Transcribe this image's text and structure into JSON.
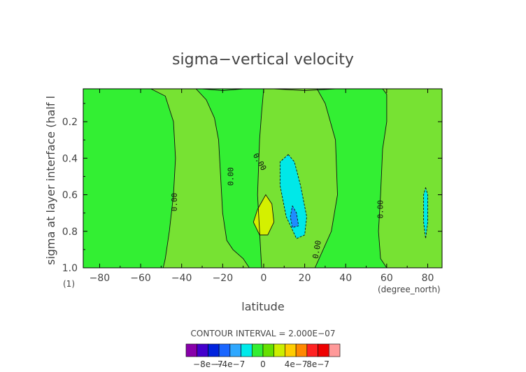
{
  "chart_data": {
    "type": "heatmap",
    "title": "sigma−vertical velocity",
    "xlabel": "latitude",
    "ylabel": "sigma at layer interface (half l",
    "x_unit": "(degree_north)",
    "y_unit": "(1)",
    "xlim": [
      -88,
      87
    ],
    "ylim": [
      1.0,
      0.02
    ],
    "x_ticks": [
      -80,
      -60,
      -40,
      -20,
      0,
      20,
      40,
      60,
      80
    ],
    "x_tick_labels": [
      "−80",
      "−60",
      "−40",
      "−20",
      "0",
      "20",
      "40",
      "60",
      "80"
    ],
    "y_ticks": [
      0.2,
      0.4,
      0.6,
      0.8,
      1.0
    ],
    "y_tick_labels": [
      "0.2",
      "0.4",
      "0.6",
      "0.8",
      "1.0"
    ],
    "contour_interval_text": "CONTOUR INTERVAL = 2.000E−07",
    "contour_labels": [
      {
        "text": "0.00",
        "lat": -43.5,
        "sigma": 0.64,
        "rotate": -90
      },
      {
        "text": "0.00",
        "lat": -16,
        "sigma": 0.5,
        "rotate": -90
      },
      {
        "text": "0.00",
        "lat": -2,
        "sigma": 0.42,
        "rotate": 60
      },
      {
        "text": "0.00",
        "lat": 57,
        "sigma": 0.68,
        "rotate": -90
      },
      {
        "text": "0.00",
        "lat": 26,
        "sigma": 0.9,
        "rotate": -80
      }
    ],
    "regions": [
      {
        "level": "0 to 2e-7",
        "color": "#77e233",
        "points": [
          [
            -88,
            0.02
          ],
          [
            -33,
            0.02
          ],
          [
            -28,
            0.08
          ],
          [
            -24,
            0.18
          ],
          [
            -22,
            0.3
          ],
          [
            -21,
            0.5
          ],
          [
            -20,
            0.7
          ],
          [
            -18,
            0.85
          ],
          [
            -15,
            0.9
          ],
          [
            -10,
            0.95
          ],
          [
            -7,
            1.0
          ],
          [
            -88,
            1.0
          ]
        ]
      },
      {
        "level": "0 to 2e-7",
        "color": "#77e233",
        "points": [
          [
            0,
            0.02
          ],
          [
            26,
            0.02
          ],
          [
            30,
            0.1
          ],
          [
            35,
            0.3
          ],
          [
            36,
            0.6
          ],
          [
            33,
            0.8
          ],
          [
            29,
            0.9
          ],
          [
            25,
            1.0
          ],
          [
            -1,
            1.0
          ],
          [
            -3,
            0.6
          ],
          [
            -2,
            0.3
          ],
          [
            -1,
            0.15
          ]
        ]
      },
      {
        "level": "0 to 2e-7",
        "color": "#77e233",
        "points": [
          [
            58,
            0.02
          ],
          [
            87,
            0.02
          ],
          [
            87,
            1.0
          ],
          [
            60,
            1.0
          ],
          [
            57,
            0.95
          ],
          [
            56,
            0.8
          ],
          [
            57,
            0.6
          ],
          [
            58,
            0.35
          ],
          [
            60,
            0.2
          ],
          [
            60,
            0.05
          ]
        ]
      },
      {
        "level": "0 to -2e-7",
        "color": "#33ef33",
        "points": [
          [
            -33,
            0.02
          ],
          [
            0,
            0.02
          ],
          [
            -1,
            0.15
          ],
          [
            -2,
            0.3
          ],
          [
            -3,
            0.6
          ],
          [
            -1,
            1.0
          ],
          [
            -7,
            1.0
          ],
          [
            -10,
            0.95
          ],
          [
            -15,
            0.9
          ],
          [
            -18,
            0.85
          ],
          [
            -20,
            0.7
          ],
          [
            -21,
            0.5
          ],
          [
            -22,
            0.3
          ],
          [
            -24,
            0.18
          ],
          [
            -28,
            0.08
          ]
        ]
      },
      {
        "level": "0 to -2e-7",
        "color": "#33ef33",
        "points": [
          [
            26,
            0.02
          ],
          [
            58,
            0.02
          ],
          [
            60,
            0.05
          ],
          [
            60,
            0.2
          ],
          [
            58,
            0.35
          ],
          [
            57,
            0.6
          ],
          [
            56,
            0.8
          ],
          [
            57,
            0.95
          ],
          [
            60,
            1.0
          ],
          [
            25,
            1.0
          ],
          [
            29,
            0.9
          ],
          [
            33,
            0.8
          ],
          [
            36,
            0.6
          ],
          [
            35,
            0.3
          ],
          [
            30,
            0.1
          ]
        ]
      },
      {
        "level": "0 to -2e-7",
        "color": "#33ef33",
        "points": [
          [
            -88,
            0.02
          ],
          [
            -55,
            0.02
          ],
          [
            -48,
            0.06
          ],
          [
            -44,
            0.2
          ],
          [
            -43,
            0.4
          ],
          [
            -44,
            0.6
          ],
          [
            -46,
            0.8
          ],
          [
            -48,
            0.95
          ],
          [
            -49,
            1.0
          ],
          [
            -88,
            1.0
          ]
        ]
      },
      {
        "level": "2e-7 to 4e-7",
        "color": "#d4f000",
        "points": [
          [
            -3,
            0.68
          ],
          [
            1,
            0.6
          ],
          [
            4,
            0.65
          ],
          [
            5,
            0.75
          ],
          [
            2,
            0.82
          ],
          [
            -2,
            0.82
          ],
          [
            -5,
            0.75
          ]
        ]
      },
      {
        "level": "-2e-7 to -4e-7",
        "color": "#00e8e8",
        "points": [
          [
            12,
            0.38
          ],
          [
            15,
            0.42
          ],
          [
            18,
            0.55
          ],
          [
            21,
            0.72
          ],
          [
            20,
            0.82
          ],
          [
            16,
            0.84
          ],
          [
            11,
            0.72
          ],
          [
            8,
            0.55
          ],
          [
            8,
            0.42
          ]
        ]
      },
      {
        "level": "-4e-7 to -6e-7",
        "color": "#1f8cff",
        "points": [
          [
            14,
            0.66
          ],
          [
            16,
            0.7
          ],
          [
            17,
            0.77
          ],
          [
            14,
            0.78
          ],
          [
            13,
            0.72
          ]
        ]
      },
      {
        "level": "-2e-7 to -4e-7",
        "color": "#00e8e8",
        "points": [
          [
            79,
            0.56
          ],
          [
            80,
            0.6
          ],
          [
            80,
            0.75
          ],
          [
            79,
            0.84
          ],
          [
            78,
            0.75
          ],
          [
            78,
            0.6
          ]
        ]
      }
    ],
    "solid_contours": [
      [
        [
          -55,
          0.02
        ],
        [
          -48,
          0.06
        ],
        [
          -44,
          0.2
        ],
        [
          -43,
          0.4
        ],
        [
          -44,
          0.6
        ],
        [
          -46,
          0.8
        ],
        [
          -48,
          0.95
        ],
        [
          -49,
          1.0
        ]
      ],
      [
        [
          -33,
          0.02
        ],
        [
          -28,
          0.08
        ],
        [
          -24,
          0.18
        ],
        [
          -22,
          0.3
        ],
        [
          -21,
          0.5
        ],
        [
          -20,
          0.7
        ],
        [
          -18,
          0.85
        ],
        [
          -15,
          0.9
        ],
        [
          -10,
          0.95
        ],
        [
          -7,
          1.0
        ]
      ],
      [
        [
          0,
          0.02
        ],
        [
          -1,
          0.15
        ],
        [
          -2,
          0.3
        ],
        [
          -3,
          0.6
        ],
        [
          -1,
          1.0
        ]
      ],
      [
        [
          26,
          0.02
        ],
        [
          30,
          0.1
        ],
        [
          35,
          0.3
        ],
        [
          36,
          0.6
        ],
        [
          33,
          0.8
        ],
        [
          29,
          0.9
        ],
        [
          25,
          1.0
        ]
      ],
      [
        [
          58,
          0.02
        ],
        [
          60,
          0.05
        ],
        [
          60,
          0.2
        ],
        [
          58,
          0.35
        ],
        [
          57,
          0.6
        ],
        [
          56,
          0.8
        ],
        [
          57,
          0.95
        ],
        [
          60,
          1.0
        ]
      ],
      [
        [
          -3,
          0.68
        ],
        [
          1,
          0.6
        ],
        [
          4,
          0.65
        ],
        [
          5,
          0.75
        ],
        [
          2,
          0.82
        ],
        [
          -2,
          0.82
        ],
        [
          -5,
          0.75
        ],
        [
          -3,
          0.68
        ]
      ],
      [
        [
          -30,
          0.02
        ],
        [
          -20,
          0.03
        ],
        [
          -10,
          0.02
        ]
      ],
      [
        [
          5,
          0.02
        ],
        [
          20,
          0.03
        ],
        [
          35,
          0.02
        ]
      ]
    ],
    "dashed_contours": [
      [
        [
          12,
          0.38
        ],
        [
          15,
          0.42
        ],
        [
          18,
          0.55
        ],
        [
          21,
          0.72
        ],
        [
          20,
          0.82
        ],
        [
          16,
          0.84
        ],
        [
          11,
          0.72
        ],
        [
          8,
          0.55
        ],
        [
          8,
          0.42
        ],
        [
          12,
          0.38
        ]
      ],
      [
        [
          14,
          0.66
        ],
        [
          16,
          0.7
        ],
        [
          17,
          0.77
        ],
        [
          14,
          0.78
        ],
        [
          13,
          0.72
        ],
        [
          14,
          0.66
        ]
      ],
      [
        [
          79,
          0.56
        ],
        [
          80,
          0.6
        ],
        [
          80,
          0.75
        ],
        [
          79,
          0.84
        ],
        [
          78,
          0.75
        ],
        [
          78,
          0.6
        ],
        [
          79,
          0.56
        ]
      ]
    ],
    "colorbar": {
      "colors": [
        "#8800aa",
        "#4400cc",
        "#0022dd",
        "#1a66ff",
        "#2fa8ff",
        "#00eaea",
        "#33ee33",
        "#66e000",
        "#ccee00",
        "#ffcc00",
        "#ff8800",
        "#ff2222",
        "#ee0000",
        "#ff9999"
      ],
      "labels": [
        {
          "text": "−8e−7",
          "index": 2
        },
        {
          "text": "−4e−7",
          "index": 4
        },
        {
          "text": "0",
          "index": 7
        },
        {
          "text": "4e−7",
          "index": 10
        },
        {
          "text": "8e−7",
          "index": 12
        }
      ]
    }
  }
}
